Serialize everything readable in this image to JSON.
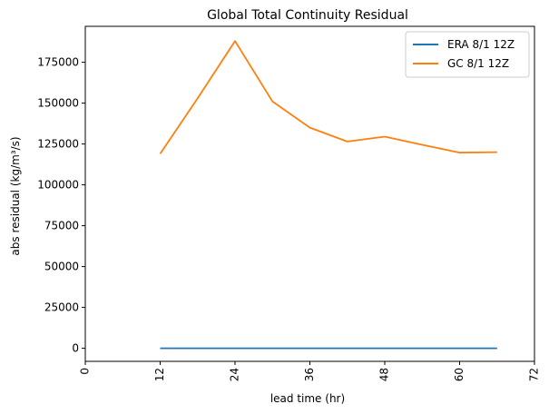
{
  "chart_data": {
    "type": "line",
    "title": "Global Total Continuity Residual",
    "xlabel": "lead time (hr)",
    "ylabel": "abs residual (kg/m³/s)",
    "xlim": [
      0,
      72
    ],
    "ylim": [
      -8000,
      197000
    ],
    "xticks": [
      0,
      12,
      24,
      36,
      48,
      60,
      72
    ],
    "yticks": [
      0,
      25000,
      50000,
      75000,
      100000,
      125000,
      150000,
      175000
    ],
    "grid": false,
    "legend": "top-right",
    "series": [
      {
        "name": "ERA 8/1 12Z",
        "color": "#1f77b4",
        "x": [
          12,
          18,
          24,
          30,
          36,
          42,
          48,
          54,
          60,
          66
        ],
        "y": [
          0,
          0,
          0,
          0,
          0,
          0,
          0,
          0,
          0,
          0
        ]
      },
      {
        "name": "GC 8/1 12Z",
        "color": "#ff7f0e",
        "x": [
          12,
          18,
          24,
          30,
          36,
          42,
          48,
          54,
          60,
          66
        ],
        "y": [
          119000,
          153000,
          188000,
          151000,
          135000,
          126500,
          129500,
          124500,
          119700,
          120000
        ]
      }
    ]
  }
}
